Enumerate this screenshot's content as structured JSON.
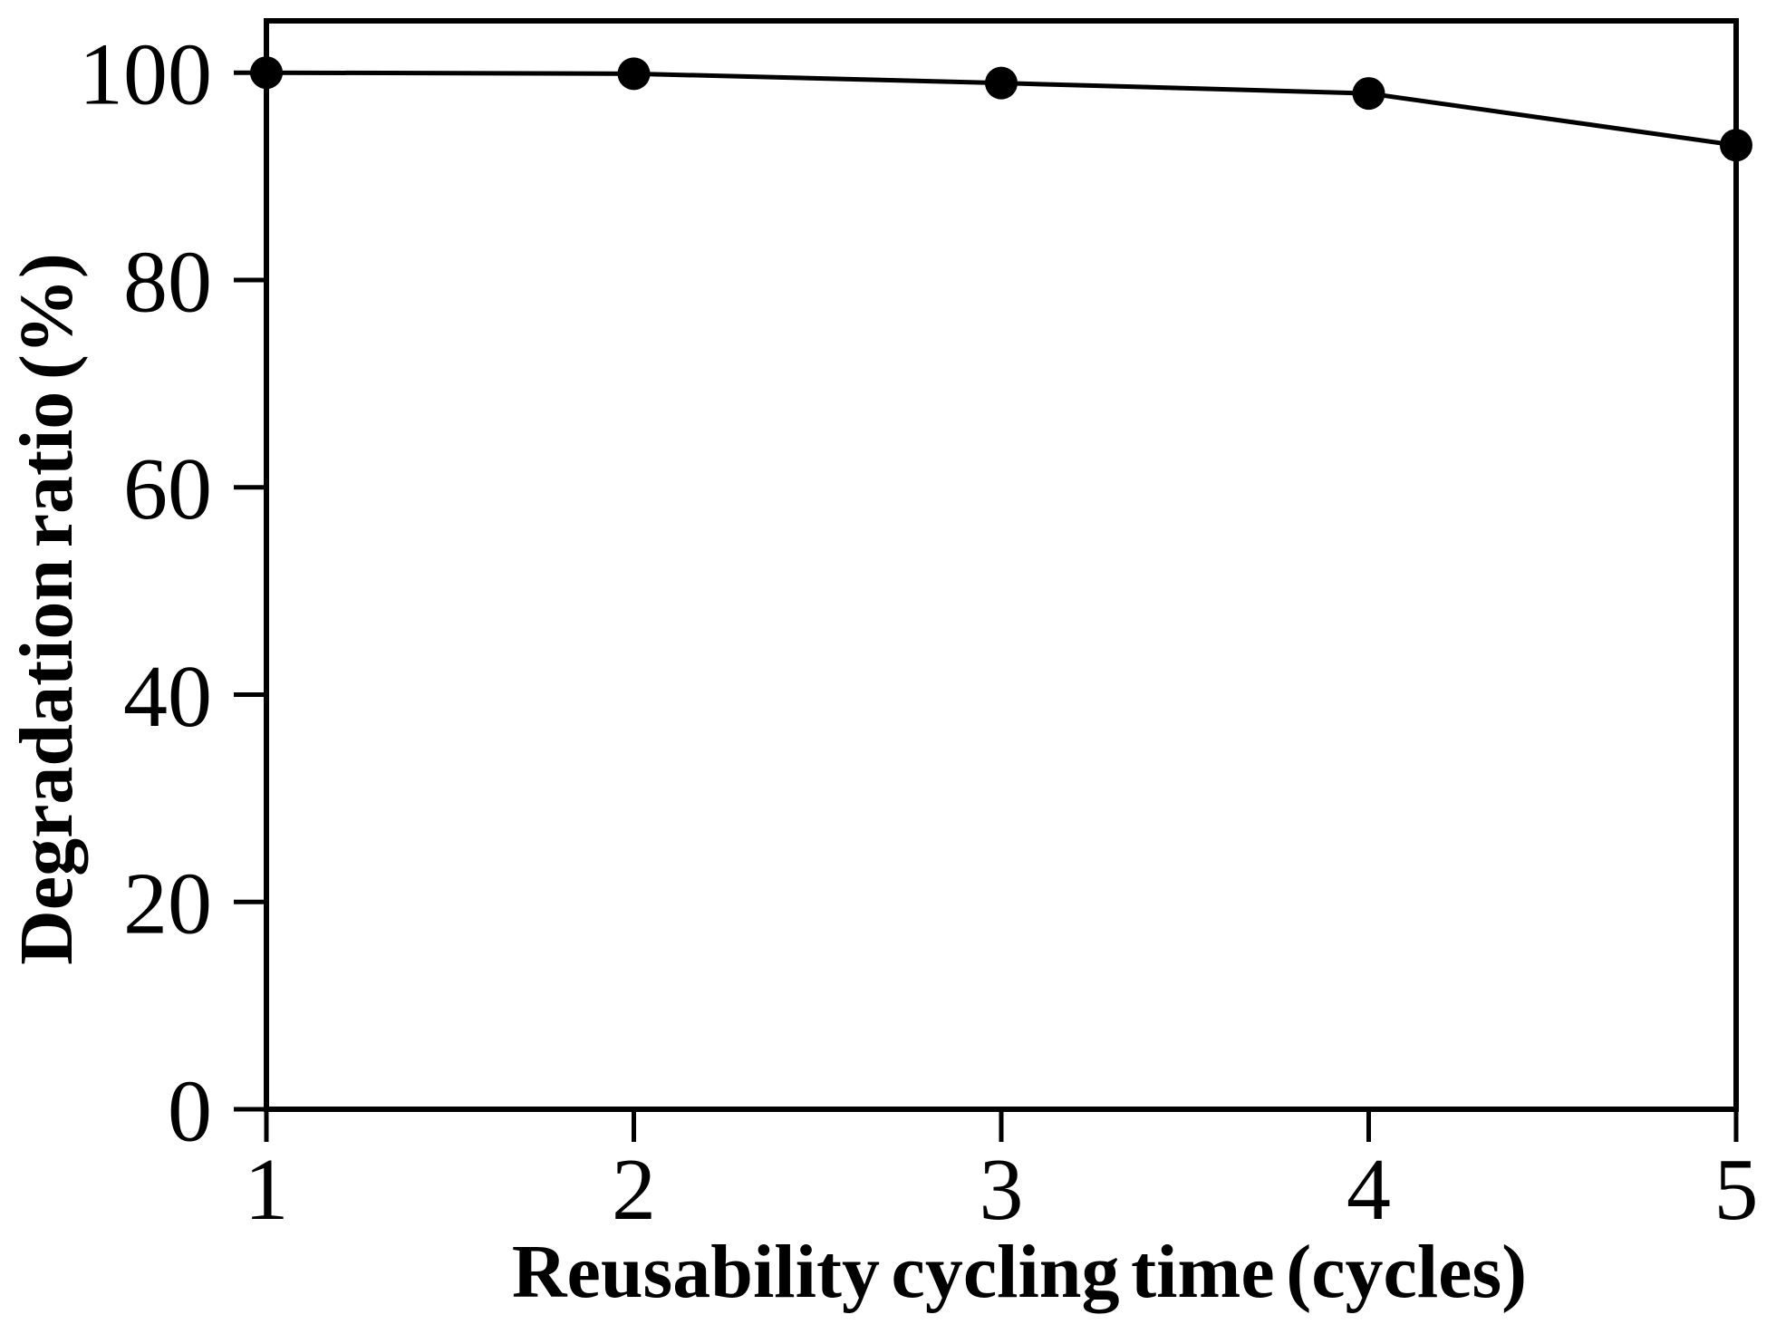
{
  "figure": {
    "background_color": "#ffffff",
    "ink_color": "#000000"
  },
  "chart_data": {
    "type": "line",
    "title": "",
    "xlabel": "Reusability cycling time (cycles)",
    "ylabel": "Degradation ratio (%)",
    "x": [
      1,
      2,
      3,
      4,
      5
    ],
    "series": [
      {
        "name": "degradation-ratio",
        "values": [
          100,
          99.9,
          99,
          98,
          93
        ]
      }
    ],
    "xlim": [
      1,
      5
    ],
    "ylim": [
      0,
      105
    ],
    "xticks": [
      "1",
      "2",
      "3",
      "4",
      "5"
    ],
    "xtick_values": [
      1,
      2,
      3,
      4,
      5
    ],
    "yticks": [
      "0",
      "20",
      "40",
      "60",
      "80",
      "100"
    ],
    "ytick_values": [
      0,
      20,
      40,
      60,
      80,
      100
    ],
    "grid": false,
    "legend_position": "none",
    "marker": "filled-circle",
    "marker_color": "#000000",
    "line_color": "#000000",
    "frame": "full-box",
    "tick_direction": "out"
  }
}
